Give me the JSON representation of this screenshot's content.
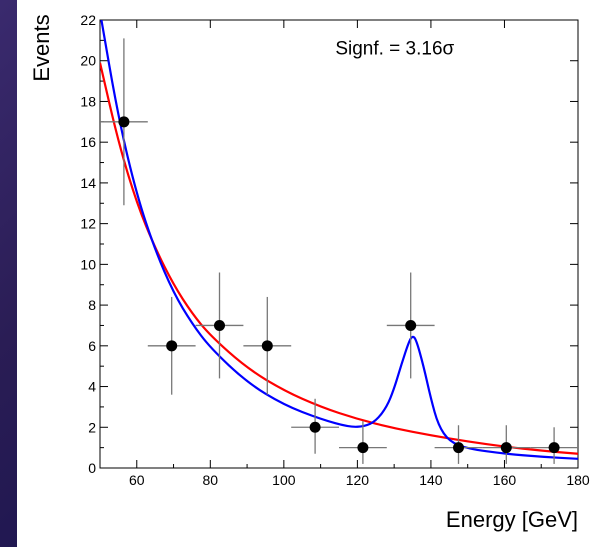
{
  "chart_data": {
    "type": "scatter",
    "title": "",
    "xlabel": "Energy [GeV]",
    "ylabel": "Events",
    "xlim": [
      50,
      180
    ],
    "ylim": [
      0,
      22
    ],
    "x_ticks": [
      60,
      80,
      100,
      120,
      140,
      160,
      180
    ],
    "y_ticks": [
      0,
      2,
      4,
      6,
      8,
      10,
      12,
      14,
      16,
      18,
      20,
      22
    ],
    "annotation": "Signf. = 3.16σ",
    "grid": false,
    "series": [
      {
        "kind": "points",
        "color": "#000000",
        "x": [
          56.5,
          69.5,
          82.5,
          95.5,
          108.5,
          121.5,
          134.5,
          147.5,
          160.5,
          173.5
        ],
        "y": [
          17,
          6,
          7,
          6,
          2,
          1,
          7,
          1,
          1,
          1
        ],
        "xerr": [
          6.5,
          6.5,
          6.5,
          6.5,
          6.5,
          6.5,
          6.5,
          6.5,
          6.5,
          6.5
        ],
        "yerr_low": [
          4.1,
          2.4,
          2.6,
          2.4,
          1.3,
          0.8,
          2.6,
          0.8,
          0.8,
          0.8
        ],
        "yerr_high": [
          4.1,
          2.4,
          2.6,
          2.4,
          1.4,
          1.3,
          2.6,
          1.1,
          1.1,
          1.0
        ]
      },
      {
        "kind": "line",
        "color": "#ff0000",
        "x": [
          50,
          55,
          60,
          65,
          70,
          75,
          80,
          90,
          100,
          110,
          120,
          130,
          140,
          150,
          160,
          170,
          180
        ],
        "y": [
          19.9,
          16.0,
          13.0,
          10.8,
          9.0,
          7.6,
          6.5,
          4.9,
          3.8,
          3.0,
          2.4,
          1.95,
          1.6,
          1.3,
          1.05,
          0.85,
          0.7
        ]
      },
      {
        "kind": "line",
        "color": "#0000ff",
        "x": [
          50,
          55,
          60,
          65,
          70,
          75,
          80,
          90,
          100,
          110,
          118,
          122,
          125,
          128,
          130,
          132,
          134,
          135,
          136,
          138,
          140,
          142,
          145,
          150,
          160,
          170,
          180
        ],
        "y": [
          22.4,
          17.2,
          13.4,
          10.7,
          8.6,
          7.1,
          5.9,
          4.2,
          3.1,
          2.4,
          2.0,
          2.05,
          2.3,
          3.0,
          3.9,
          5.1,
          6.2,
          6.5,
          6.3,
          5.0,
          3.4,
          2.1,
          1.3,
          0.95,
          0.7,
          0.55,
          0.45
        ]
      }
    ]
  }
}
